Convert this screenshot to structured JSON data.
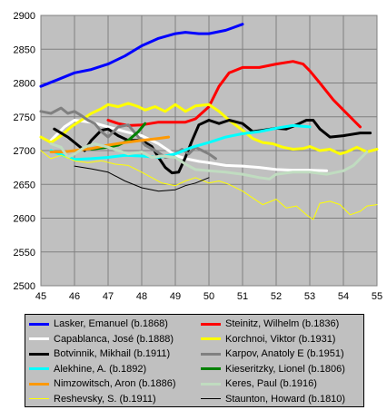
{
  "chart_data": {
    "type": "line",
    "title": "",
    "xlabel": "",
    "ylabel": "",
    "xlim": [
      45,
      55
    ],
    "ylim": [
      2500,
      2900
    ],
    "xticks": [
      "45",
      "46",
      "47",
      "48",
      "49",
      "50",
      "51",
      "52",
      "53",
      "54",
      "55"
    ],
    "yticks": [
      "2500",
      "2550",
      "2600",
      "2650",
      "2700",
      "2750",
      "2800",
      "2850",
      "2900"
    ],
    "grid": true,
    "legend_position": "bottom",
    "series": [
      {
        "name": "Lasker, Emanuel (b.1868)",
        "color": "#0000ff",
        "width": 3,
        "points": [
          [
            45.0,
            2795
          ],
          [
            45.5,
            2805
          ],
          [
            46.0,
            2815
          ],
          [
            46.5,
            2820
          ],
          [
            47.0,
            2828
          ],
          [
            47.5,
            2840
          ],
          [
            48.0,
            2855
          ],
          [
            48.5,
            2866
          ],
          [
            49.0,
            2873
          ],
          [
            49.3,
            2875
          ],
          [
            49.7,
            2873
          ],
          [
            50.0,
            2873
          ],
          [
            50.5,
            2878
          ],
          [
            51.0,
            2887
          ]
        ]
      },
      {
        "name": "Steinitz, Wilhelm (b.1836)",
        "color": "#ff0000",
        "width": 3,
        "points": [
          [
            47.0,
            2745
          ],
          [
            47.3,
            2740
          ],
          [
            47.6,
            2737
          ],
          [
            48.0,
            2738
          ],
          [
            48.5,
            2742
          ],
          [
            49.0,
            2742
          ],
          [
            49.3,
            2742
          ],
          [
            49.6,
            2747
          ],
          [
            50.0,
            2765
          ],
          [
            50.3,
            2795
          ],
          [
            50.6,
            2815
          ],
          [
            51.0,
            2823
          ],
          [
            51.5,
            2823
          ],
          [
            52.0,
            2828
          ],
          [
            52.5,
            2832
          ],
          [
            52.8,
            2828
          ],
          [
            53.0,
            2818
          ],
          [
            53.3,
            2800
          ],
          [
            53.7,
            2775
          ],
          [
            54.0,
            2760
          ],
          [
            54.3,
            2745
          ],
          [
            54.5,
            2735
          ]
        ]
      },
      {
        "name": "Capablanca, José (b.1888)",
        "color": "#ffffff",
        "width": 3,
        "points": [
          [
            45.3,
            2715
          ],
          [
            45.7,
            2735
          ],
          [
            46.0,
            2745
          ],
          [
            46.5,
            2742
          ],
          [
            47.0,
            2735
          ],
          [
            47.5,
            2728
          ],
          [
            48.0,
            2722
          ],
          [
            48.5,
            2710
          ],
          [
            48.8,
            2700
          ],
          [
            49.0,
            2693
          ],
          [
            49.3,
            2688
          ],
          [
            49.7,
            2684
          ],
          [
            50.0,
            2682
          ],
          [
            50.5,
            2678
          ],
          [
            51.0,
            2677
          ],
          [
            51.5,
            2675
          ],
          [
            52.0,
            2672
          ],
          [
            52.5,
            2671
          ],
          [
            53.0,
            2671
          ],
          [
            53.5,
            2670
          ]
        ]
      },
      {
        "name": "Korchnoi, Viktor (b.1931)",
        "color": "#ffff00",
        "width": 3,
        "points": [
          [
            45.0,
            2720
          ],
          [
            45.3,
            2712
          ],
          [
            45.6,
            2722
          ],
          [
            45.9,
            2735
          ],
          [
            46.2,
            2745
          ],
          [
            46.5,
            2755
          ],
          [
            46.8,
            2762
          ],
          [
            47.0,
            2768
          ],
          [
            47.3,
            2765
          ],
          [
            47.6,
            2770
          ],
          [
            47.9,
            2765
          ],
          [
            48.1,
            2760
          ],
          [
            48.4,
            2765
          ],
          [
            48.7,
            2758
          ],
          [
            49.0,
            2768
          ],
          [
            49.3,
            2758
          ],
          [
            49.6,
            2766
          ],
          [
            50.0,
            2768
          ],
          [
            50.3,
            2758
          ],
          [
            50.6,
            2745
          ],
          [
            51.0,
            2730
          ],
          [
            51.3,
            2718
          ],
          [
            51.6,
            2712
          ],
          [
            51.9,
            2710
          ],
          [
            52.2,
            2705
          ],
          [
            52.5,
            2702
          ],
          [
            52.8,
            2703
          ],
          [
            53.0,
            2706
          ],
          [
            53.3,
            2700
          ],
          [
            53.6,
            2702
          ],
          [
            53.9,
            2695
          ],
          [
            54.1,
            2698
          ],
          [
            54.4,
            2705
          ],
          [
            54.7,
            2698
          ],
          [
            55.0,
            2702
          ]
        ]
      },
      {
        "name": "Botvinnik, Mikhail (b.1911)",
        "color": "#000000",
        "width": 3,
        "points": [
          [
            45.4,
            2732
          ],
          [
            45.8,
            2720
          ],
          [
            46.1,
            2708
          ],
          [
            46.3,
            2700
          ],
          [
            46.5,
            2715
          ],
          [
            46.8,
            2730
          ],
          [
            47.0,
            2732
          ],
          [
            47.3,
            2722
          ],
          [
            47.6,
            2715
          ],
          [
            48.0,
            2715
          ],
          [
            48.3,
            2706
          ],
          [
            48.5,
            2690
          ],
          [
            48.7,
            2675
          ],
          [
            48.9,
            2667
          ],
          [
            49.1,
            2668
          ],
          [
            49.3,
            2690
          ],
          [
            49.5,
            2715
          ],
          [
            49.7,
            2738
          ],
          [
            50.0,
            2745
          ],
          [
            50.3,
            2740
          ],
          [
            50.6,
            2745
          ],
          [
            51.0,
            2740
          ],
          [
            51.3,
            2728
          ],
          [
            51.6,
            2730
          ],
          [
            52.0,
            2733
          ],
          [
            52.3,
            2732
          ],
          [
            52.6,
            2738
          ],
          [
            52.9,
            2745
          ],
          [
            53.1,
            2745
          ],
          [
            53.3,
            2732
          ],
          [
            53.6,
            2720
          ],
          [
            54.0,
            2722
          ],
          [
            54.5,
            2726
          ],
          [
            54.8,
            2726
          ]
        ]
      },
      {
        "name": "Karpov, Anatoly E (b.1951)",
        "color": "#808080",
        "width": 3,
        "points": [
          [
            45.0,
            2758
          ],
          [
            45.3,
            2755
          ],
          [
            45.6,
            2763
          ],
          [
            45.8,
            2755
          ],
          [
            46.0,
            2758
          ],
          [
            46.2,
            2752
          ],
          [
            46.4,
            2745
          ],
          [
            46.6,
            2740
          ],
          [
            46.8,
            2728
          ],
          [
            47.0,
            2720
          ],
          [
            47.3,
            2735
          ],
          [
            47.6,
            2738
          ],
          [
            47.9,
            2720
          ],
          [
            48.1,
            2708
          ],
          [
            48.4,
            2700
          ],
          [
            48.7,
            2690
          ],
          [
            48.9,
            2692
          ],
          [
            49.2,
            2702
          ],
          [
            49.4,
            2695
          ],
          [
            49.6,
            2705
          ],
          [
            49.8,
            2700
          ],
          [
            50.0,
            2695
          ],
          [
            50.2,
            2688
          ]
        ]
      },
      {
        "name": "Alekhine, A. (b.1892)",
        "color": "#00ffff",
        "width": 3,
        "points": [
          [
            45.3,
            2700
          ],
          [
            45.7,
            2692
          ],
          [
            46.0,
            2687
          ],
          [
            46.5,
            2688
          ],
          [
            47.0,
            2690
          ],
          [
            47.5,
            2693
          ],
          [
            48.0,
            2692
          ],
          [
            48.5,
            2690
          ],
          [
            49.0,
            2695
          ],
          [
            49.5,
            2705
          ],
          [
            50.0,
            2712
          ],
          [
            50.5,
            2720
          ],
          [
            51.0,
            2725
          ],
          [
            51.5,
            2728
          ],
          [
            52.0,
            2733
          ],
          [
            52.5,
            2737
          ],
          [
            53.0,
            2735
          ]
        ]
      },
      {
        "name": "Kieseritzky, Lionel (b.1806)",
        "color": "#008000",
        "width": 3,
        "points": [
          [
            46.5,
            2702
          ],
          [
            47.0,
            2705
          ],
          [
            47.3,
            2708
          ],
          [
            47.6,
            2715
          ],
          [
            47.9,
            2728
          ],
          [
            48.1,
            2740
          ]
        ]
      },
      {
        "name": "Nimzowitsch, Aron (b.1886)",
        "color": "#ff9900",
        "width": 3,
        "points": [
          [
            45.3,
            2698
          ],
          [
            45.7,
            2698
          ],
          [
            46.0,
            2700
          ],
          [
            46.5,
            2703
          ],
          [
            47.0,
            2708
          ],
          [
            47.5,
            2712
          ],
          [
            48.0,
            2715
          ],
          [
            48.5,
            2718
          ],
          [
            48.8,
            2720
          ]
        ]
      },
      {
        "name": "Keres, Paul (b.1916)",
        "color": "#c0dcc0",
        "width": 3,
        "points": [
          [
            45.3,
            2710
          ],
          [
            45.6,
            2705
          ],
          [
            45.8,
            2690
          ],
          [
            46.0,
            2695
          ],
          [
            46.3,
            2705
          ],
          [
            46.6,
            2710
          ],
          [
            47.0,
            2705
          ],
          [
            47.3,
            2700
          ],
          [
            47.6,
            2695
          ],
          [
            48.0,
            2698
          ],
          [
            48.3,
            2690
          ],
          [
            48.6,
            2692
          ],
          [
            49.0,
            2690
          ],
          [
            49.3,
            2680
          ],
          [
            49.6,
            2672
          ],
          [
            50.0,
            2670
          ],
          [
            50.5,
            2668
          ],
          [
            51.0,
            2665
          ],
          [
            51.5,
            2660
          ],
          [
            51.8,
            2658
          ],
          [
            52.0,
            2665
          ],
          [
            52.5,
            2668
          ],
          [
            53.0,
            2668
          ],
          [
            53.5,
            2665
          ],
          [
            54.0,
            2670
          ],
          [
            54.3,
            2678
          ],
          [
            54.5,
            2688
          ],
          [
            54.7,
            2698
          ]
        ]
      },
      {
        "name": "Reshevsky, S. (b.1911)",
        "color": "#ffff00",
        "width": 1,
        "points": [
          [
            45.0,
            2700
          ],
          [
            45.3,
            2688
          ],
          [
            45.6,
            2693
          ],
          [
            46.0,
            2685
          ],
          [
            46.4,
            2682
          ],
          [
            46.8,
            2685
          ],
          [
            47.2,
            2680
          ],
          [
            47.6,
            2678
          ],
          [
            48.0,
            2668
          ],
          [
            48.3,
            2660
          ],
          [
            48.6,
            2652
          ],
          [
            49.0,
            2648
          ],
          [
            49.3,
            2655
          ],
          [
            49.6,
            2660
          ],
          [
            50.0,
            2652
          ],
          [
            50.3,
            2655
          ],
          [
            50.6,
            2650
          ],
          [
            51.0,
            2640
          ],
          [
            51.3,
            2630
          ],
          [
            51.6,
            2620
          ],
          [
            52.0,
            2628
          ],
          [
            52.3,
            2615
          ],
          [
            52.6,
            2618
          ],
          [
            52.9,
            2605
          ],
          [
            53.1,
            2598
          ],
          [
            53.3,
            2622
          ],
          [
            53.6,
            2625
          ],
          [
            53.9,
            2620
          ],
          [
            54.2,
            2605
          ],
          [
            54.5,
            2610
          ],
          [
            54.7,
            2618
          ],
          [
            55.0,
            2620
          ]
        ]
      },
      {
        "name": "Staunton, Howard (b.1810)",
        "color": "#000000",
        "width": 1,
        "points": [
          [
            46.0,
            2677
          ],
          [
            46.5,
            2673
          ],
          [
            47.0,
            2668
          ],
          [
            47.5,
            2655
          ],
          [
            48.0,
            2645
          ],
          [
            48.5,
            2640
          ],
          [
            49.0,
            2642
          ],
          [
            49.3,
            2648
          ],
          [
            49.6,
            2652
          ],
          [
            50.0,
            2660
          ]
        ]
      }
    ]
  }
}
